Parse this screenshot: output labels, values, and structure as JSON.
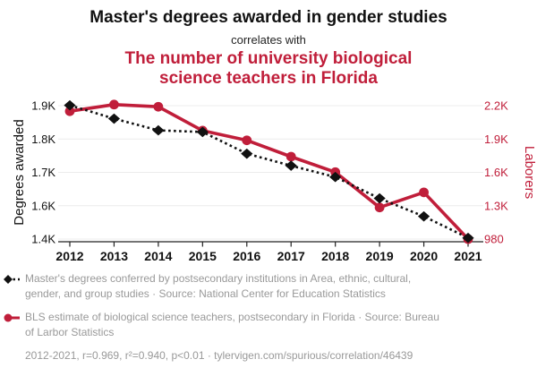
{
  "page": {
    "title": "Master's degrees awarded in gender studies",
    "connector": "correlates with",
    "subtitle": "The number of university biological science teachers in Florida"
  },
  "colors": {
    "red": "#c01e3a",
    "black": "#111111",
    "legend_gray": "#999999",
    "grid": "#ececec",
    "axis": "#222222"
  },
  "chart_data": {
    "type": "line",
    "x": [
      2012,
      2013,
      2014,
      2015,
      2016,
      2017,
      2018,
      2019,
      2020,
      2021
    ],
    "series": [
      {
        "name": "Master's degrees awarded in gender studies",
        "axis": "left",
        "color": "#111111",
        "line": "dotted",
        "marker": "diamond",
        "values": [
          1901,
          1861,
          1826,
          1821,
          1756,
          1720,
          1686,
          1622,
          1536,
          1407
        ]
      },
      {
        "name": "University biological science teachers in Florida",
        "axis": "right",
        "color": "#c01e3a",
        "line": "solid",
        "marker": "circle",
        "values": [
          2150,
          2210,
          2190,
          1975,
          1888,
          1741,
          1602,
          1283,
          1420,
          980
        ]
      }
    ],
    "left_axis": {
      "label": "Degrees awarded",
      "tick_labels": [
        "1.9K",
        "1.8K",
        "1.7K",
        "1.6K",
        "1.4K"
      ],
      "tick_values": [
        1900,
        1800,
        1700,
        1600,
        1400
      ]
    },
    "right_axis": {
      "label": "Laborers",
      "tick_labels": [
        "2.2K",
        "1.9K",
        "1.6K",
        "1.3K",
        "980"
      ],
      "tick_values": [
        2200,
        1900,
        1600,
        1300,
        980
      ]
    },
    "x_range": [
      "2012",
      "2021"
    ],
    "grid": true,
    "legend_position": "bottom"
  },
  "legend": {
    "series1": "Master's degrees conferred by postsecondary institutions in Area, ethnic, cultural, gender, and group studies · Source: National Center for Education Statistics",
    "series2": "BLS estimate of biological science teachers, postsecondary in Florida · Source: Bureau of Larbor Statistics"
  },
  "footer": "2012-2021, r=0.969, r²=0.940, p<0.01 · tylervigen.com/spurious/correlation/46439"
}
